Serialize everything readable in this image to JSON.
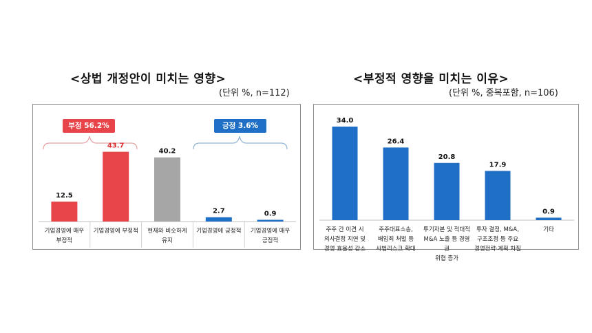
{
  "left": {
    "title": "<상법 개정안이 미치는 영향>",
    "unit": "(단위 %, n=112)",
    "groups": [
      {
        "label": "부정 56.2%",
        "color": "#e8454a"
      },
      {
        "label": "긍정 3.6%",
        "color": "#1f6fc6"
      }
    ],
    "chart_data": {
      "type": "bar",
      "categories": [
        "기업경영에 매우\n부정적",
        "기업경영에 부정적",
        "현재와 비슷하게\n유지",
        "기업경영에 긍정적",
        "기업경영에 매우\n긍정적"
      ],
      "values": [
        12.5,
        43.7,
        40.2,
        2.7,
        0.9
      ],
      "value_labels": [
        "12.5",
        "43.7",
        "40.2",
        "2.7",
        "0.9"
      ],
      "colors": [
        "#e8454a",
        "#e8454a",
        "#a6a6a6",
        "#1f6fc6",
        "#1f6fc6"
      ],
      "value_label_colors": [
        "#111111",
        "#d92b2b",
        "#111111",
        "#111111",
        "#111111"
      ],
      "ylim": [
        0,
        50
      ]
    }
  },
  "right": {
    "title": "<부정적 영향을 미치는 이유>",
    "unit": "(단위 %, 중복포함, n=106)",
    "chart_data": {
      "type": "bar",
      "categories": [
        "주주 간 이견 시\n의사결정 지연 및\n경영 효율성 감소",
        "주주대표소송,\n배임죄 처벌 등\n사법리스크 확대",
        "투기자본 및 적대적\nM&A 노출 등 경영권\n위협 증가",
        "투자 결정, M&A,\n구조조정 등 주요\n경영전략·계획 차질",
        "기타"
      ],
      "values": [
        34.0,
        26.4,
        20.8,
        17.9,
        0.9
      ],
      "value_labels": [
        "34.0",
        "26.4",
        "20.8",
        "17.9",
        "0.9"
      ],
      "colors": [
        "#1f6fc6",
        "#1f6fc6",
        "#1f6fc6",
        "#1f6fc6",
        "#1f6fc6"
      ],
      "ylim": [
        0,
        36
      ]
    }
  }
}
